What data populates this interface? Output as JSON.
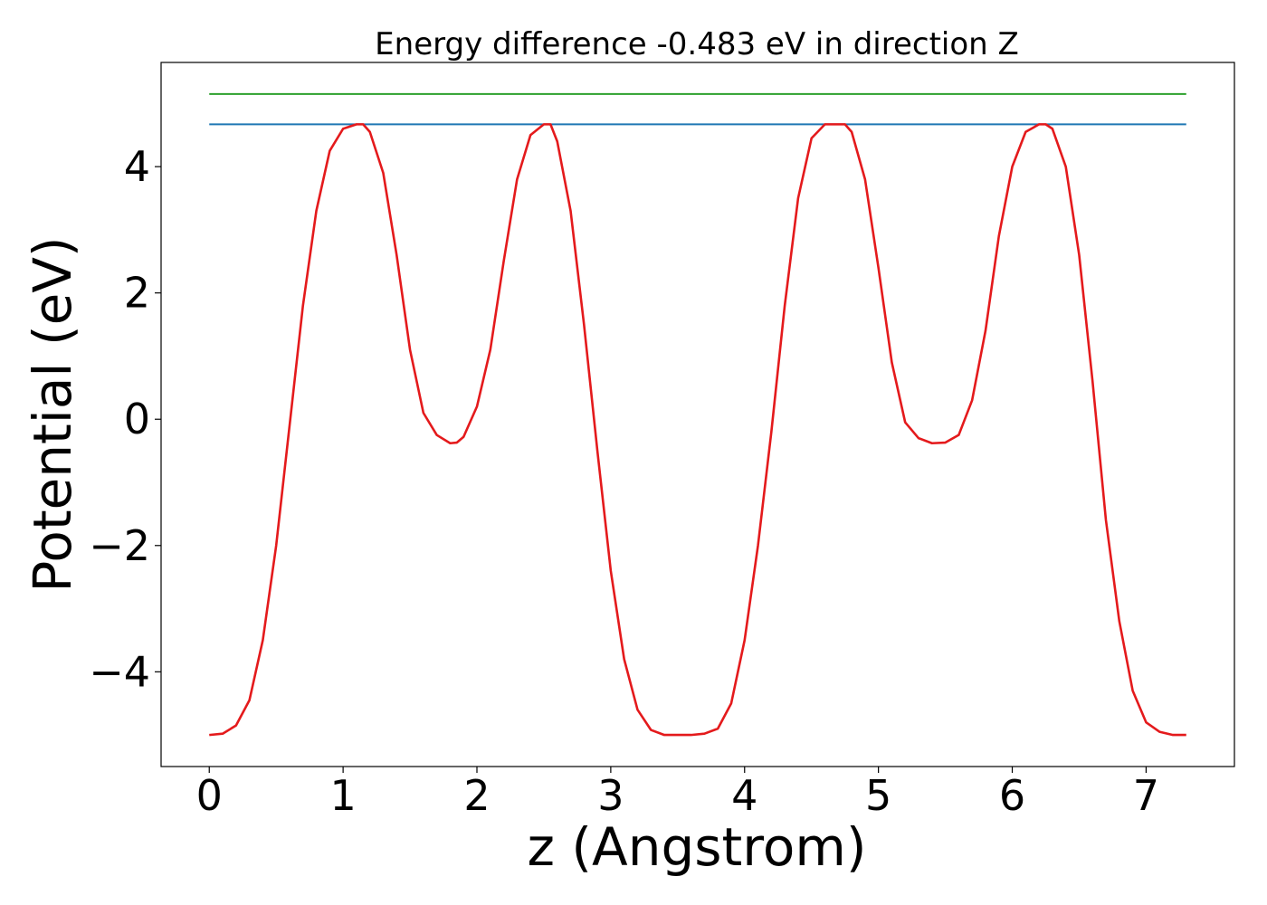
{
  "chart_data": {
    "type": "line",
    "title": "Energy difference -0.483 eV in direction Z",
    "xlabel": "z (Angstrom)",
    "ylabel": "Potential (eV)",
    "xlim": [
      -0.36,
      7.66
    ],
    "ylim": [
      -5.5,
      5.65
    ],
    "xticks": [
      0,
      1,
      2,
      3,
      4,
      5,
      6,
      7
    ],
    "yticks": [
      -4,
      -2,
      0,
      2,
      4
    ],
    "xtick_labels": [
      "0",
      "1",
      "2",
      "3",
      "4",
      "5",
      "6",
      "7"
    ],
    "ytick_labels": [
      "−4",
      "−2",
      "0",
      "2",
      "4"
    ],
    "grid": false,
    "legend": "none",
    "series": [
      {
        "color": "#2ca02c",
        "x": [
          0,
          7.3
        ],
        "y": [
          5.15,
          5.15
        ]
      },
      {
        "color": "#1f77b4",
        "x": [
          0,
          7.3
        ],
        "y": [
          4.67,
          4.67
        ]
      },
      {
        "color": "#e41a1c",
        "x": [
          0,
          0.1,
          0.2,
          0.3,
          0.4,
          0.5,
          0.6,
          0.7,
          0.8,
          0.9,
          1.0,
          1.1,
          1.15,
          1.2,
          1.3,
          1.4,
          1.5,
          1.6,
          1.7,
          1.8,
          1.85,
          1.9,
          2.0,
          2.1,
          2.2,
          2.3,
          2.4,
          2.5,
          2.55,
          2.6,
          2.7,
          2.8,
          2.9,
          3.0,
          3.1,
          3.2,
          3.3,
          3.4,
          3.5,
          3.6,
          3.7,
          3.8,
          3.9,
          4.0,
          4.1,
          4.2,
          4.3,
          4.4,
          4.5,
          4.6,
          4.7,
          4.75,
          4.8,
          4.9,
          5.0,
          5.1,
          5.2,
          5.3,
          5.4,
          5.5,
          5.6,
          5.7,
          5.8,
          5.9,
          6.0,
          6.1,
          6.2,
          6.25,
          6.3,
          6.4,
          6.5,
          6.6,
          6.7,
          6.8,
          6.9,
          7.0,
          7.1,
          7.2,
          7.3
        ],
        "y": [
          -5.0,
          -4.98,
          -4.85,
          -4.45,
          -3.5,
          -2.0,
          -0.1,
          1.8,
          3.3,
          4.25,
          4.6,
          4.67,
          4.67,
          4.55,
          3.9,
          2.6,
          1.1,
          0.1,
          -0.25,
          -0.38,
          -0.37,
          -0.28,
          0.2,
          1.1,
          2.5,
          3.8,
          4.5,
          4.67,
          4.67,
          4.4,
          3.3,
          1.5,
          -0.5,
          -2.4,
          -3.8,
          -4.6,
          -4.92,
          -5.0,
          -5.0,
          -5.0,
          -4.98,
          -4.9,
          -4.5,
          -3.5,
          -2.0,
          -0.2,
          1.8,
          3.5,
          4.45,
          4.67,
          4.67,
          4.67,
          4.55,
          3.8,
          2.4,
          0.9,
          -0.05,
          -0.3,
          -0.38,
          -0.37,
          -0.25,
          0.3,
          1.4,
          2.9,
          4.0,
          4.55,
          4.67,
          4.67,
          4.6,
          4.0,
          2.6,
          0.6,
          -1.6,
          -3.2,
          -4.3,
          -4.8,
          -4.95,
          -5.0,
          -5.0
        ]
      }
    ]
  }
}
